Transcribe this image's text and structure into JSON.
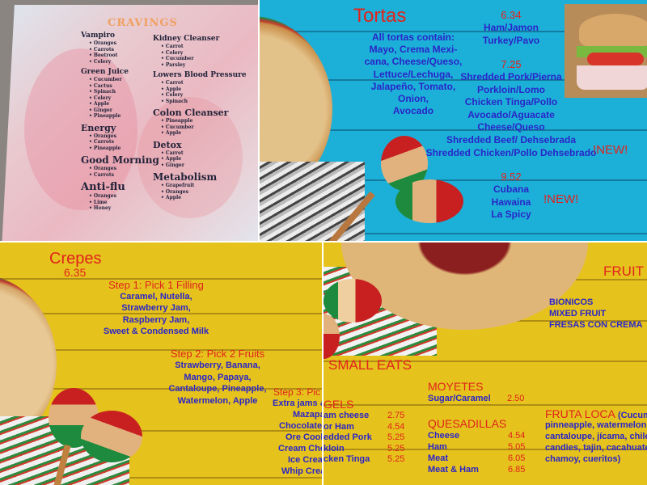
{
  "cravings": {
    "title": "CRAVINGS",
    "left": [
      {
        "h": "Vampiro",
        "items": [
          "Oranges",
          "Carrots",
          "Beetroot",
          "Celery"
        ]
      },
      {
        "h": "Green Juice",
        "items": [
          "Cucumber",
          "Cactus",
          "Spinach",
          "Celery",
          "Apple",
          "Ginger",
          "Pineapple"
        ]
      },
      {
        "h": "Energy",
        "items": [
          "Oranges",
          "Carrots",
          "Pineapple"
        ]
      },
      {
        "h": "Good Morning",
        "items": [
          "Oranges",
          "Carrots"
        ]
      },
      {
        "h": "Anti-flu",
        "items": [
          "Oranges",
          "Lime",
          "Honey"
        ]
      }
    ],
    "right": [
      {
        "h": "Kidney Cleanser",
        "items": [
          "Carrot",
          "Celery",
          "Cucumber",
          "Parsley"
        ]
      },
      {
        "h": "Lowers Blood Pressure",
        "items": [
          "Carrot",
          "Apple",
          "Celery",
          "Spinach"
        ]
      },
      {
        "h": "Colon Cleanser",
        "items": [
          "Pineapple",
          "Cucumber",
          "Apple"
        ]
      },
      {
        "h": "Detox",
        "items": [
          "Carrot",
          "Apple",
          "Ginger"
        ]
      },
      {
        "h": "Metabolism",
        "items": [
          "Grapefruit",
          "Oranges",
          "Apple"
        ]
      }
    ]
  },
  "tortas": {
    "title": "Tortas",
    "contains": [
      "All tortas contain:",
      "Mayo, Crema Mexi-",
      "cana, Cheese/Queso,",
      "Lettuce/Lechuga,",
      "Jalapeño, Tomato,",
      "Onion,",
      "Avocado"
    ],
    "price1": "6.34",
    "group1": [
      "Ham/Jamon",
      "Turkey/Pavo"
    ],
    "price2": "7.25",
    "group2": [
      "Shredded Pork/Pierna",
      "Porkloin/Lomo",
      "Chicken Tinga/Pollo",
      "Avocado/Aguacate",
      "Cheese/Queso",
      "Shredded Beef/ Dehsebrada",
      "Shredded Chicken/Pollo Dehsebrado"
    ],
    "new1": "!NEW!",
    "price3": "9.52",
    "group3": [
      "Cubana",
      "Hawaina",
      "La Spicy"
    ],
    "new2": "!NEW!"
  },
  "crepes": {
    "title": "Crepes",
    "price": "6.35",
    "step1": "Step 1: Pick 1 Filling",
    "step1_items": [
      "Caramel, Nutella,",
      "Strawberry Jam,",
      "Raspberry Jam,",
      "Sweet & Condensed Milk"
    ],
    "step2": "Step 2: Pick 2 Fruits",
    "step2_items": [
      "Strawberry, Banana,",
      "Mango, Papaya,",
      "Cantaloupe, Pineapple,",
      "Watermelon, Apple"
    ],
    "step3": "Step 3: Pic",
    "step3_items": [
      "Extra jams &",
      "Mazapa",
      "Chocolate C",
      "Ore Cooki",
      "Cream Chec",
      "Ice Crear",
      "Whip Crear"
    ]
  },
  "small_eats": {
    "fruit_title": "FRUIT",
    "fruit_items": [
      "BIONICOS",
      "MIXED FRUIT",
      "FRESAS CON CREMA"
    ],
    "title": "SMALL EATS",
    "bagels_title": "GELS",
    "bagels": [
      {
        "name": "am cheese",
        "price": "2.75"
      },
      {
        "name": " or Ham",
        "price": "4.54"
      },
      {
        "name": "edded Pork",
        "price": "5.25"
      },
      {
        "name": "kloin",
        "price": "5.25"
      },
      {
        "name": "cken Tinga",
        "price": "5.25"
      }
    ],
    "moyetes_title": "MOYETES",
    "moyetes": [
      {
        "name": "Sugar/Caramel",
        "price": "2.50"
      }
    ],
    "quesadillas_title": "QUESADILLAS",
    "quesadillas": [
      {
        "name": "Cheese",
        "price": "4.54"
      },
      {
        "name": "Ham",
        "price": "5.05"
      },
      {
        "name": "Meat",
        "price": "6.05"
      },
      {
        "name": "Meat & Ham",
        "price": "6.85"
      }
    ],
    "fruta_loca_title": "FRUTA LOCA",
    "fruta_loca_open": "(Cucumb",
    "fruta_loca_lines": [
      "pinneapple, watermelon,",
      "cantaloupe, jícama, chile, t",
      "candies, tajin, cacahuate ja",
      "chamoy, cueritos)"
    ]
  },
  "colors": {
    "red": "#e0231c",
    "blue": "#2a25c8",
    "yellow": "#e6c21c",
    "turquoise": "#1eb2d8"
  }
}
